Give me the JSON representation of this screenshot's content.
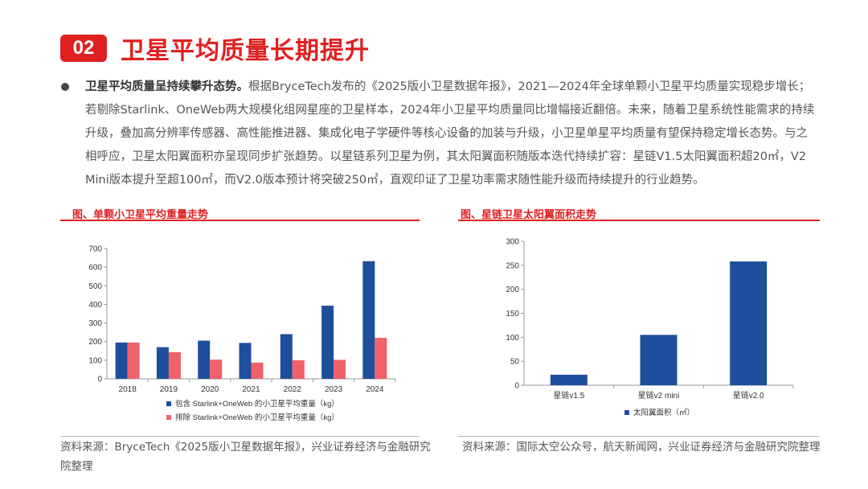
{
  "header": {
    "number": "02",
    "title": "卫星平均质量长期提升"
  },
  "body": {
    "lead": "卫星平均质量呈持续攀升态势。",
    "text": "根据BryceTech发布的《2025版小卫星数据年报》，2021—2024年全球单颗小卫星平均质量实现稳步增长；若剔除Starlink、OneWeb两大规模化组网星座的卫星样本，2024年小卫星平均质量同比增幅接近翻倍。未来，随着卫星系统性能需求的持续升级，叠加高分辨率传感器、高性能推进器、集成化电子学硬件等核心设备的加装与升级，小卫星单星平均质量有望保持稳定增长态势。与之相呼应，卫星太阳翼面积亦呈现同步扩张趋势。以星链系列卫星为例，其太阳翼面积随版本迭代持续扩容：星链V1.5太阳翼面积超20㎡，V2 Mini版本提升至超100㎡，而V2.0版本预计将突破250㎡，直观印证了卫星功率需求随性能升级而持续提升的行业趋势。"
  },
  "left_chart": {
    "caption": "图、单颗小卫星平均重量走势",
    "source": "资料来源：BryceTech《2025版小卫星数据年报》，兴业证券经济与金融研究院整理"
  },
  "right_chart": {
    "caption": "图、星链卫星太阳翼面积走势",
    "source": "资料来源：国际太空公众号，航天新闻网，兴业证券经济与金融研究院整理"
  },
  "chart_data": [
    {
      "type": "bar",
      "categories": [
        "2018",
        "2019",
        "2020",
        "2021",
        "2022",
        "2023",
        "2024"
      ],
      "series": [
        {
          "name": "包含 Starlink+OneWeb 的小卫星平均重量（kg）",
          "values": [
            195,
            170,
            205,
            193,
            240,
            393,
            632
          ],
          "color": "#1f4e9c"
        },
        {
          "name": "排除 Starlink+OneWeb 的小卫星平均重量（kg）",
          "values": [
            195,
            143,
            103,
            87,
            100,
            102,
            220
          ],
          "color": "#f0626a"
        }
      ],
      "ylim": [
        0,
        700
      ],
      "yticks": [
        "0",
        "100",
        "200",
        "300",
        "400",
        "500",
        "600",
        "700"
      ],
      "legend": "bottom"
    },
    {
      "type": "bar",
      "categories": [
        "星链v1.5",
        "星链v2 mini",
        "星链v2.0"
      ],
      "series": [
        {
          "name": "太阳翼面积（㎡）",
          "values": [
            22,
            105,
            258
          ],
          "color": "#1f4e9c"
        }
      ],
      "ylim": [
        0,
        300
      ],
      "yticks": [
        "0",
        "50",
        "100",
        "150",
        "200",
        "250",
        "300"
      ],
      "legend": "bottom"
    }
  ]
}
